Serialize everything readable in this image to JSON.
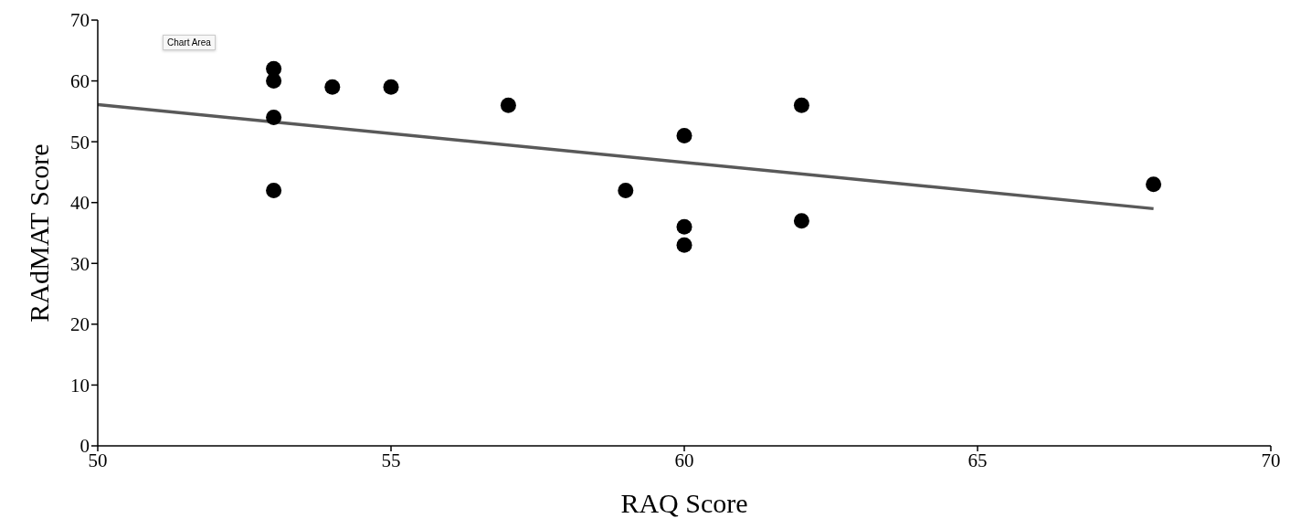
{
  "chart_data": {
    "type": "scatter",
    "xlabel": "RAQ Score",
    "ylabel": "RAdMAT Score",
    "xlim": [
      50,
      70
    ],
    "xticks": [
      50,
      55,
      60,
      65,
      70
    ],
    "ylim": [
      0,
      70
    ],
    "yticks": [
      0,
      10,
      20,
      30,
      40,
      50,
      60,
      70
    ],
    "grid": false,
    "legend": false,
    "annotations": [
      "Chart Area"
    ],
    "series": [
      {
        "type": "scatter",
        "color": "#000000",
        "marker": "circle",
        "x": [
          53,
          53,
          53,
          53,
          54,
          55,
          57,
          59,
          60,
          60,
          60,
          62,
          62,
          68
        ],
        "values": [
          62,
          60,
          54,
          42,
          59,
          59,
          56,
          42,
          51,
          36,
          33,
          56,
          37,
          43
        ]
      },
      {
        "type": "line",
        "marker": "none",
        "color": "#595959",
        "x": [
          50,
          68
        ],
        "values": [
          56.1,
          39
        ]
      }
    ]
  }
}
